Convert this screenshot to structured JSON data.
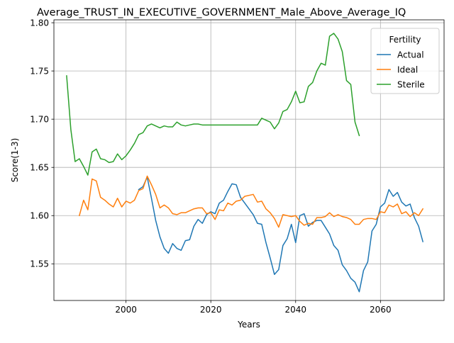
{
  "chart_data": {
    "type": "line",
    "title": "Average_TRUST_IN_EXECUTIVE_GOVERNMENT_Male_Above_Average_IQ",
    "xlabel": "Years",
    "ylabel": "Score(1-3)",
    "xlim": [
      1983,
      2075
    ],
    "ylim": [
      1.512,
      1.803
    ],
    "xticks": [
      2000,
      2020,
      2040,
      2060
    ],
    "yticks": [
      1.55,
      1.6,
      1.65,
      1.7,
      1.75,
      1.8
    ],
    "ytick_labels": [
      "1.55",
      "1.60",
      "1.65",
      "1.70",
      "1.75",
      "1.80"
    ],
    "grid": true,
    "legend": {
      "title": "Fertility",
      "placement": "top-right"
    },
    "series": [
      {
        "name": "Actual",
        "color": "#1f77b4",
        "points": [
          [
            2003,
            1.627
          ],
          [
            2004,
            1.63
          ],
          [
            2005,
            1.64
          ],
          [
            2006,
            1.618
          ],
          [
            2007,
            1.595
          ],
          [
            2008,
            1.578
          ],
          [
            2009,
            1.566
          ],
          [
            2010,
            1.561
          ],
          [
            2011,
            1.571
          ],
          [
            2012,
            1.566
          ],
          [
            2013,
            1.564
          ],
          [
            2014,
            1.574
          ],
          [
            2015,
            1.575
          ],
          [
            2016,
            1.589
          ],
          [
            2017,
            1.596
          ],
          [
            2018,
            1.592
          ],
          [
            2019,
            1.601
          ],
          [
            2020,
            1.604
          ],
          [
            2021,
            1.602
          ],
          [
            2022,
            1.613
          ],
          [
            2023,
            1.616
          ],
          [
            2024,
            1.625
          ],
          [
            2025,
            1.633
          ],
          [
            2026,
            1.632
          ],
          [
            2027,
            1.619
          ],
          [
            2028,
            1.613
          ],
          [
            2029,
            1.607
          ],
          [
            2030,
            1.601
          ],
          [
            2031,
            1.592
          ],
          [
            2032,
            1.591
          ],
          [
            2033,
            1.572
          ],
          [
            2034,
            1.556
          ],
          [
            2035,
            1.539
          ],
          [
            2036,
            1.544
          ],
          [
            2037,
            1.569
          ],
          [
            2038,
            1.576
          ],
          [
            2039,
            1.591
          ],
          [
            2040,
            1.572
          ],
          [
            2041,
            1.6
          ],
          [
            2042,
            1.602
          ],
          [
            2043,
            1.589
          ],
          [
            2044,
            1.593
          ],
          [
            2045,
            1.595
          ],
          [
            2046,
            1.595
          ],
          [
            2047,
            1.588
          ],
          [
            2048,
            1.581
          ],
          [
            2049,
            1.569
          ],
          [
            2050,
            1.564
          ],
          [
            2051,
            1.549
          ],
          [
            2052,
            1.543
          ],
          [
            2053,
            1.535
          ],
          [
            2054,
            1.531
          ],
          [
            2055,
            1.521
          ],
          [
            2056,
            1.543
          ],
          [
            2057,
            1.552
          ],
          [
            2058,
            1.584
          ],
          [
            2059,
            1.591
          ],
          [
            2060,
            1.609
          ],
          [
            2061,
            1.613
          ],
          [
            2062,
            1.627
          ],
          [
            2063,
            1.62
          ],
          [
            2064,
            1.624
          ],
          [
            2065,
            1.614
          ],
          [
            2066,
            1.61
          ],
          [
            2067,
            1.612
          ],
          [
            2068,
            1.598
          ],
          [
            2069,
            1.589
          ],
          [
            2070,
            1.573
          ]
        ]
      },
      {
        "name": "Ideal",
        "color": "#ff7f0e",
        "points": [
          [
            1989,
            1.6
          ],
          [
            1990,
            1.616
          ],
          [
            1991,
            1.606
          ],
          [
            1992,
            1.638
          ],
          [
            1993,
            1.636
          ],
          [
            1994,
            1.619
          ],
          [
            1995,
            1.616
          ],
          [
            1996,
            1.612
          ],
          [
            1997,
            1.609
          ],
          [
            1998,
            1.618
          ],
          [
            1999,
            1.609
          ],
          [
            2000,
            1.615
          ],
          [
            2001,
            1.613
          ],
          [
            2002,
            1.616
          ],
          [
            2003,
            1.626
          ],
          [
            2004,
            1.628
          ],
          [
            2005,
            1.641
          ],
          [
            2006,
            1.632
          ],
          [
            2007,
            1.622
          ],
          [
            2008,
            1.608
          ],
          [
            2009,
            1.611
          ],
          [
            2010,
            1.608
          ],
          [
            2011,
            1.602
          ],
          [
            2012,
            1.601
          ],
          [
            2013,
            1.603
          ],
          [
            2014,
            1.603
          ],
          [
            2015,
            1.605
          ],
          [
            2016,
            1.607
          ],
          [
            2017,
            1.608
          ],
          [
            2018,
            1.608
          ],
          [
            2019,
            1.602
          ],
          [
            2020,
            1.603
          ],
          [
            2021,
            1.596
          ],
          [
            2022,
            1.606
          ],
          [
            2023,
            1.605
          ],
          [
            2024,
            1.613
          ],
          [
            2025,
            1.611
          ],
          [
            2026,
            1.615
          ],
          [
            2027,
            1.616
          ],
          [
            2028,
            1.62
          ],
          [
            2029,
            1.621
          ],
          [
            2030,
            1.622
          ],
          [
            2031,
            1.614
          ],
          [
            2032,
            1.615
          ],
          [
            2033,
            1.607
          ],
          [
            2034,
            1.603
          ],
          [
            2035,
            1.597
          ],
          [
            2036,
            1.588
          ],
          [
            2037,
            1.601
          ],
          [
            2038,
            1.6
          ],
          [
            2039,
            1.599
          ],
          [
            2040,
            1.6
          ],
          [
            2041,
            1.594
          ],
          [
            2042,
            1.59
          ],
          [
            2043,
            1.592
          ],
          [
            2044,
            1.591
          ],
          [
            2045,
            1.598
          ],
          [
            2046,
            1.598
          ],
          [
            2047,
            1.599
          ],
          [
            2048,
            1.603
          ],
          [
            2049,
            1.599
          ],
          [
            2050,
            1.601
          ],
          [
            2051,
            1.599
          ],
          [
            2052,
            1.598
          ],
          [
            2053,
            1.596
          ],
          [
            2054,
            1.591
          ],
          [
            2055,
            1.591
          ],
          [
            2056,
            1.596
          ],
          [
            2057,
            1.597
          ],
          [
            2058,
            1.597
          ],
          [
            2059,
            1.596
          ],
          [
            2060,
            1.604
          ],
          [
            2061,
            1.603
          ],
          [
            2062,
            1.611
          ],
          [
            2063,
            1.609
          ],
          [
            2064,
            1.612
          ],
          [
            2065,
            1.602
          ],
          [
            2066,
            1.604
          ],
          [
            2067,
            1.599
          ],
          [
            2068,
            1.603
          ],
          [
            2069,
            1.6
          ],
          [
            2070,
            1.607
          ]
        ]
      },
      {
        "name": "Sterile",
        "color": "#2ca02c",
        "points": [
          [
            1986,
            1.745
          ],
          [
            1987,
            1.689
          ],
          [
            1988,
            1.656
          ],
          [
            1989,
            1.659
          ],
          [
            1990,
            1.651
          ],
          [
            1991,
            1.642
          ],
          [
            1992,
            1.666
          ],
          [
            1993,
            1.669
          ],
          [
            1994,
            1.659
          ],
          [
            1995,
            1.658
          ],
          [
            1996,
            1.655
          ],
          [
            1997,
            1.656
          ],
          [
            1998,
            1.664
          ],
          [
            1999,
            1.658
          ],
          [
            2000,
            1.662
          ],
          [
            2001,
            1.668
          ],
          [
            2002,
            1.675
          ],
          [
            2003,
            1.684
          ],
          [
            2004,
            1.686
          ],
          [
            2005,
            1.693
          ],
          [
            2006,
            1.695
          ],
          [
            2007,
            1.693
          ],
          [
            2008,
            1.691
          ],
          [
            2009,
            1.693
          ],
          [
            2010,
            1.692
          ],
          [
            2011,
            1.692
          ],
          [
            2012,
            1.697
          ],
          [
            2013,
            1.694
          ],
          [
            2014,
            1.693
          ],
          [
            2015,
            1.694
          ],
          [
            2016,
            1.695
          ],
          [
            2017,
            1.695
          ],
          [
            2018,
            1.694
          ],
          [
            2019,
            1.694
          ],
          [
            2020,
            1.694
          ],
          [
            2021,
            1.694
          ],
          [
            2022,
            1.694
          ],
          [
            2023,
            1.694
          ],
          [
            2024,
            1.694
          ],
          [
            2025,
            1.694
          ],
          [
            2026,
            1.694
          ],
          [
            2027,
            1.694
          ],
          [
            2028,
            1.694
          ],
          [
            2029,
            1.694
          ],
          [
            2030,
            1.694
          ],
          [
            2031,
            1.694
          ],
          [
            2032,
            1.701
          ],
          [
            2033,
            1.699
          ],
          [
            2034,
            1.697
          ],
          [
            2035,
            1.69
          ],
          [
            2036,
            1.696
          ],
          [
            2037,
            1.708
          ],
          [
            2038,
            1.71
          ],
          [
            2039,
            1.718
          ],
          [
            2040,
            1.729
          ],
          [
            2041,
            1.717
          ],
          [
            2042,
            1.718
          ],
          [
            2043,
            1.734
          ],
          [
            2044,
            1.738
          ],
          [
            2045,
            1.75
          ],
          [
            2046,
            1.758
          ],
          [
            2047,
            1.756
          ],
          [
            2048,
            1.786
          ],
          [
            2049,
            1.789
          ],
          [
            2050,
            1.783
          ],
          [
            2051,
            1.77
          ],
          [
            2052,
            1.74
          ],
          [
            2053,
            1.736
          ],
          [
            2054,
            1.697
          ],
          [
            2055,
            1.683
          ]
        ]
      }
    ]
  }
}
